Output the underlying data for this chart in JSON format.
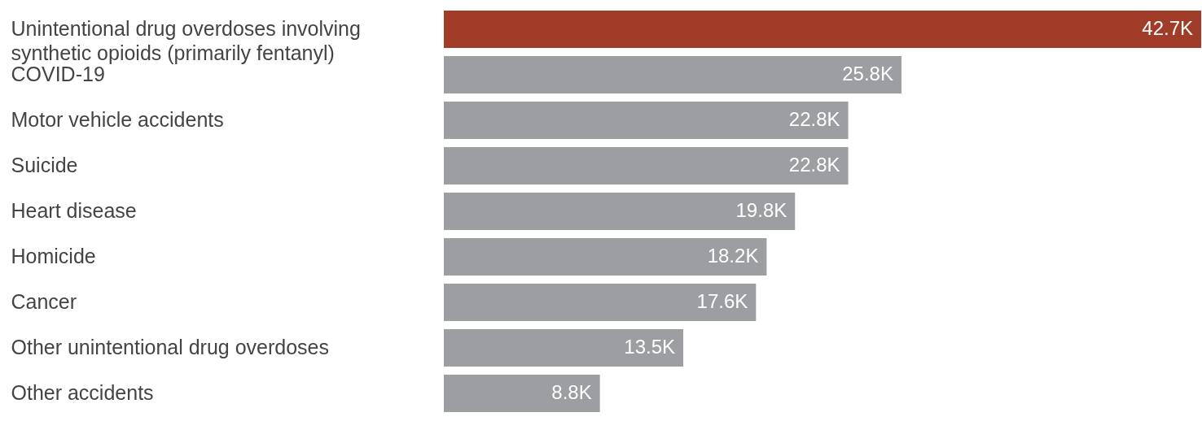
{
  "chart_data": {
    "type": "bar",
    "orientation": "horizontal",
    "categories": [
      "Unintentional drug overdoses involving synthetic opioids (primarily fentanyl)",
      "COVID-19",
      "Motor vehicle accidents",
      "Suicide",
      "Heart disease",
      "Homicide",
      "Cancer",
      "Other unintentional drug overdoses",
      "Other accidents"
    ],
    "values": [
      42700,
      25800,
      22800,
      22800,
      19800,
      18200,
      17600,
      13500,
      8800
    ],
    "value_labels": [
      "42.7K",
      "25.8K",
      "22.8K",
      "22.8K",
      "19.8K",
      "18.2K",
      "17.6K",
      "13.5K",
      "8.8K"
    ],
    "colors": [
      "#a03c28",
      "#9d9ea1",
      "#9d9ea1",
      "#9d9ea1",
      "#9d9ea1",
      "#9d9ea1",
      "#9d9ea1",
      "#9d9ea1",
      "#9d9ea1"
    ]
  }
}
